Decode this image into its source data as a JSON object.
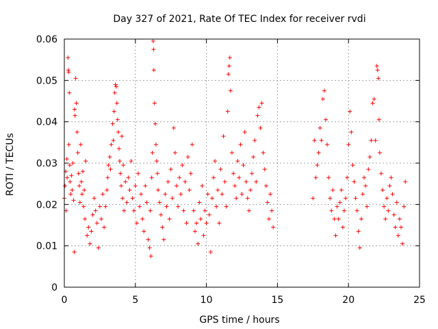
{
  "chart_data": {
    "type": "scatter",
    "title": "Day 327 of 2021, Rate Of TEC Index for receiver rvdi",
    "xlabel": "GPS time / hours",
    "ylabel": "ROTI / TECUs",
    "xlim": [
      0,
      25
    ],
    "ylim": [
      0,
      0.06
    ],
    "xticks": [
      0,
      5,
      10,
      15,
      20,
      25
    ],
    "yticks": [
      0,
      0.01,
      0.02,
      0.03,
      0.04,
      0.05,
      0.06
    ],
    "xtick_labels": [
      "0",
      "5",
      "10",
      "15",
      "20",
      "25"
    ],
    "ytick_labels": [
      "0",
      "0.01",
      "0.02",
      "0.03",
      "0.04",
      "0.05",
      "0.06"
    ],
    "grid": true,
    "marker": "+",
    "color": "#ff0000",
    "series": [
      {
        "points": [
          [
            0.0,
            0.0215
          ],
          [
            0.05,
            0.0245
          ],
          [
            0.1,
            0.028
          ],
          [
            0.12,
            0.0185
          ],
          [
            0.18,
            0.031
          ],
          [
            0.2,
            0.0265
          ],
          [
            0.25,
            0.0555
          ],
          [
            0.28,
            0.0525
          ],
          [
            0.3,
            0.052
          ],
          [
            0.32,
            0.0345
          ],
          [
            0.35,
            0.047
          ],
          [
            0.38,
            0.0295
          ],
          [
            0.4,
            0.0255
          ],
          [
            0.45,
            0.0225
          ],
          [
            0.5,
            0.027
          ],
          [
            0.55,
            0.0235
          ],
          [
            0.6,
            0.03
          ],
          [
            0.65,
            0.021
          ],
          [
            0.7,
            0.0085
          ],
          [
            0.72,
            0.043
          ],
          [
            0.75,
            0.0415
          ],
          [
            0.8,
            0.0505
          ],
          [
            0.85,
            0.0445
          ],
          [
            0.9,
            0.0375
          ],
          [
            0.95,
            0.0325
          ],
          [
            1.0,
            0.0275
          ],
          [
            1.05,
            0.0245
          ],
          [
            1.1,
            0.0205
          ],
          [
            1.15,
            0.0345
          ],
          [
            1.2,
            0.0255
          ],
          [
            1.25,
            0.0225
          ],
          [
            1.3,
            0.028
          ],
          [
            1.35,
            0.0195
          ],
          [
            1.4,
            0.0235
          ],
          [
            1.45,
            0.0165
          ],
          [
            1.5,
            0.0305
          ],
          [
            1.6,
            0.0125
          ],
          [
            1.7,
            0.0145
          ],
          [
            1.8,
            0.0105
          ],
          [
            1.9,
            0.0135
          ],
          [
            2.0,
            0.0175
          ],
          [
            2.1,
            0.0215
          ],
          [
            2.2,
            0.0185
          ],
          [
            2.3,
            0.0155
          ],
          [
            2.4,
            0.0095
          ],
          [
            2.5,
            0.0195
          ],
          [
            2.6,
            0.0165
          ],
          [
            2.7,
            0.0225
          ],
          [
            2.8,
            0.0145
          ],
          [
            2.9,
            0.0195
          ],
          [
            3.0,
            0.0235
          ],
          [
            3.05,
            0.0265
          ],
          [
            3.1,
            0.0295
          ],
          [
            3.2,
            0.0315
          ],
          [
            3.25,
            0.0285
          ],
          [
            3.3,
            0.0345
          ],
          [
            3.4,
            0.0395
          ],
          [
            3.45,
            0.0355
          ],
          [
            3.5,
            0.0425
          ],
          [
            3.55,
            0.047
          ],
          [
            3.6,
            0.049
          ],
          [
            3.65,
            0.0485
          ],
          [
            3.7,
            0.0445
          ],
          [
            3.75,
            0.0405
          ],
          [
            3.8,
            0.0375
          ],
          [
            3.85,
            0.0335
          ],
          [
            3.9,
            0.0305
          ],
          [
            3.95,
            0.0275
          ],
          [
            4.0,
            0.0245
          ],
          [
            4.05,
            0.0365
          ],
          [
            4.1,
            0.0215
          ],
          [
            4.15,
            0.0295
          ],
          [
            4.2,
            0.0185
          ],
          [
            4.3,
            0.0255
          ],
          [
            4.4,
            0.0205
          ],
          [
            4.5,
            0.0265
          ],
          [
            4.6,
            0.0235
          ],
          [
            4.7,
            0.0305
          ],
          [
            4.8,
            0.0215
          ],
          [
            4.9,
            0.0185
          ],
          [
            5.0,
            0.0245
          ],
          [
            5.1,
            0.0155
          ],
          [
            5.2,
            0.0275
          ],
          [
            5.3,
            0.0195
          ],
          [
            5.4,
            0.0225
          ],
          [
            5.5,
            0.0165
          ],
          [
            5.6,
            0.0135
          ],
          [
            5.7,
            0.0245
          ],
          [
            5.8,
            0.0205
          ],
          [
            5.9,
            0.0115
          ],
          [
            6.0,
            0.0095
          ],
          [
            6.05,
            0.0185
          ],
          [
            6.1,
            0.0075
          ],
          [
            6.15,
            0.0265
          ],
          [
            6.2,
            0.0325
          ],
          [
            6.25,
            0.0595
          ],
          [
            6.28,
            0.0575
          ],
          [
            6.3,
            0.0525
          ],
          [
            6.35,
            0.0445
          ],
          [
            6.4,
            0.0395
          ],
          [
            6.45,
            0.0345
          ],
          [
            6.5,
            0.0305
          ],
          [
            6.55,
            0.0275
          ],
          [
            6.6,
            0.0235
          ],
          [
            6.7,
            0.0205
          ],
          [
            6.8,
            0.0175
          ],
          [
            6.9,
            0.0145
          ],
          [
            7.0,
            0.0115
          ],
          [
            7.1,
            0.0225
          ],
          [
            7.2,
            0.0195
          ],
          [
            7.3,
            0.0255
          ],
          [
            7.4,
            0.0165
          ],
          [
            7.5,
            0.0285
          ],
          [
            7.6,
            0.0215
          ],
          [
            7.7,
            0.0385
          ],
          [
            7.8,
            0.0325
          ],
          [
            7.9,
            0.0245
          ],
          [
            8.0,
            0.0195
          ],
          [
            8.1,
            0.0265
          ],
          [
            8.2,
            0.0225
          ],
          [
            8.3,
            0.0295
          ],
          [
            8.4,
            0.0185
          ],
          [
            8.5,
            0.0255
          ],
          [
            8.6,
            0.0155
          ],
          [
            8.7,
            0.0315
          ],
          [
            8.8,
            0.0235
          ],
          [
            8.9,
            0.0275
          ],
          [
            9.0,
            0.0345
          ],
          [
            9.1,
            0.0185
          ],
          [
            9.2,
            0.0135
          ],
          [
            9.3,
            0.0155
          ],
          [
            9.4,
            0.0105
          ],
          [
            9.5,
            0.0205
          ],
          [
            9.6,
            0.0165
          ],
          [
            9.7,
            0.0245
          ],
          [
            9.8,
            0.0125
          ],
          [
            9.9,
            0.0185
          ],
          [
            10.0,
            0.0155
          ],
          [
            10.1,
            0.0225
          ],
          [
            10.2,
            0.0175
          ],
          [
            10.3,
            0.0085
          ],
          [
            10.4,
            0.0215
          ],
          [
            10.5,
            0.0265
          ],
          [
            10.6,
            0.0305
          ],
          [
            10.7,
            0.0195
          ],
          [
            10.8,
            0.0235
          ],
          [
            10.9,
            0.0155
          ],
          [
            11.0,
            0.0285
          ],
          [
            11.1,
            0.0225
          ],
          [
            11.2,
            0.0365
          ],
          [
            11.3,
            0.0255
          ],
          [
            11.4,
            0.0195
          ],
          [
            11.5,
            0.0425
          ],
          [
            11.55,
            0.0515
          ],
          [
            11.6,
            0.0535
          ],
          [
            11.65,
            0.0555
          ],
          [
            11.7,
            0.0475
          ],
          [
            11.8,
            0.0325
          ],
          [
            11.9,
            0.0275
          ],
          [
            12.0,
            0.0245
          ],
          [
            12.1,
            0.0215
          ],
          [
            12.2,
            0.0305
          ],
          [
            12.3,
            0.0265
          ],
          [
            12.4,
            0.0345
          ],
          [
            12.5,
            0.0225
          ],
          [
            12.6,
            0.0295
          ],
          [
            12.7,
            0.0375
          ],
          [
            12.8,
            0.0255
          ],
          [
            12.9,
            0.0215
          ],
          [
            13.0,
            0.0185
          ],
          [
            13.1,
            0.0235
          ],
          [
            13.2,
            0.0275
          ],
          [
            13.3,
            0.0315
          ],
          [
            13.4,
            0.0355
          ],
          [
            13.5,
            0.0255
          ],
          [
            13.6,
            0.0415
          ],
          [
            13.7,
            0.0435
          ],
          [
            13.8,
            0.0385
          ],
          [
            13.9,
            0.0445
          ],
          [
            14.0,
            0.0325
          ],
          [
            14.1,
            0.0285
          ],
          [
            14.2,
            0.0245
          ],
          [
            14.3,
            0.0205
          ],
          [
            14.4,
            0.0165
          ],
          [
            14.5,
            0.0225
          ],
          [
            14.6,
            0.0185
          ],
          [
            14.7,
            0.0145
          ],
          [
            17.5,
            0.0215
          ],
          [
            17.6,
            0.0355
          ],
          [
            17.7,
            0.0265
          ],
          [
            17.8,
            0.0295
          ],
          [
            17.9,
            0.0325
          ],
          [
            18.0,
            0.0385
          ],
          [
            18.1,
            0.0355
          ],
          [
            18.2,
            0.0455
          ],
          [
            18.3,
            0.0475
          ],
          [
            18.4,
            0.0405
          ],
          [
            18.5,
            0.0345
          ],
          [
            18.6,
            0.0265
          ],
          [
            18.7,
            0.0215
          ],
          [
            18.8,
            0.0185
          ],
          [
            18.9,
            0.0235
          ],
          [
            19.0,
            0.0165
          ],
          [
            19.1,
            0.0125
          ],
          [
            19.2,
            0.0195
          ],
          [
            19.3,
            0.0165
          ],
          [
            19.4,
            0.0205
          ],
          [
            19.5,
            0.0235
          ],
          [
            19.6,
            0.0145
          ],
          [
            19.7,
            0.0185
          ],
          [
            19.8,
            0.0215
          ],
          [
            19.9,
            0.0265
          ],
          [
            20.0,
            0.0345
          ],
          [
            20.1,
            0.0425
          ],
          [
            20.2,
            0.0375
          ],
          [
            20.3,
            0.0295
          ],
          [
            20.4,
            0.0255
          ],
          [
            20.5,
            0.0215
          ],
          [
            20.6,
            0.0185
          ],
          [
            20.7,
            0.0135
          ],
          [
            20.8,
            0.0095
          ],
          [
            20.9,
            0.0165
          ],
          [
            21.0,
            0.0225
          ],
          [
            21.1,
            0.0265
          ],
          [
            21.2,
            0.0245
          ],
          [
            21.3,
            0.0195
          ],
          [
            21.4,
            0.0285
          ],
          [
            21.5,
            0.0315
          ],
          [
            21.6,
            0.0355
          ],
          [
            21.7,
            0.0445
          ],
          [
            21.8,
            0.0455
          ],
          [
            21.9,
            0.0355
          ],
          [
            22.0,
            0.0535
          ],
          [
            22.05,
            0.0525
          ],
          [
            22.1,
            0.0505
          ],
          [
            22.15,
            0.0405
          ],
          [
            22.2,
            0.0325
          ],
          [
            22.3,
            0.0275
          ],
          [
            22.4,
            0.0235
          ],
          [
            22.5,
            0.0195
          ],
          [
            22.6,
            0.0165
          ],
          [
            22.7,
            0.0215
          ],
          [
            22.8,
            0.0185
          ],
          [
            22.9,
            0.0245
          ],
          [
            23.0,
            0.0265
          ],
          [
            23.1,
            0.0225
          ],
          [
            23.2,
            0.0175
          ],
          [
            23.3,
            0.0145
          ],
          [
            23.4,
            0.0205
          ],
          [
            23.5,
            0.0125
          ],
          [
            23.6,
            0.0165
          ],
          [
            23.7,
            0.0145
          ],
          [
            23.8,
            0.0105
          ],
          [
            23.9,
            0.0195
          ],
          [
            24.0,
            0.0255
          ]
        ]
      }
    ]
  }
}
